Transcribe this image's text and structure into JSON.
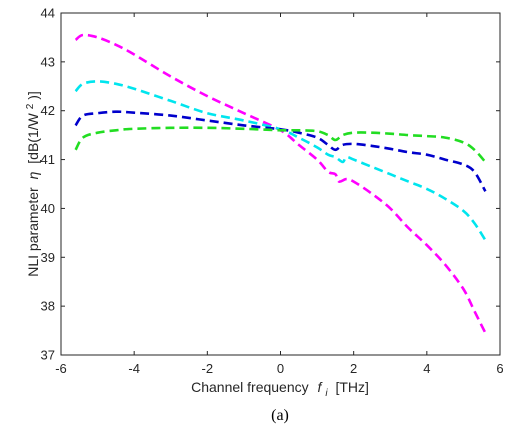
{
  "chart_data": {
    "type": "line",
    "xlabel": "Channel frequency",
    "xlabel_symbol": "f",
    "xlabel_subscript": "i",
    "xlabel_unit": "[THz]",
    "ylabel": "NLI parameter",
    "ylabel_symbol": "η",
    "ylabel_unit_prefix": "[dB(1/W",
    "ylabel_unit_sup": "2",
    "ylabel_unit_suffix": ")]",
    "xlim": [
      -6,
      6
    ],
    "ylim": [
      37,
      44
    ],
    "xticks": [
      -6,
      -4,
      -2,
      0,
      2,
      4,
      6
    ],
    "yticks": [
      37,
      38,
      39,
      40,
      41,
      42,
      43,
      44
    ],
    "grid": false,
    "caption": "(a)",
    "series": [
      {
        "color": "#ff00ff",
        "x": [
          -5.6,
          -5.4,
          -5.0,
          -4.5,
          -4.0,
          -3.0,
          -2.0,
          -1.0,
          0.0,
          0.5,
          1.0,
          1.3,
          1.5,
          1.6,
          1.8,
          2.0,
          2.5,
          3.0,
          3.5,
          4.0,
          4.5,
          5.0,
          5.3,
          5.5,
          5.6
        ],
        "y": [
          43.45,
          43.55,
          43.5,
          43.35,
          43.15,
          42.7,
          42.3,
          41.95,
          41.6,
          41.3,
          41.0,
          40.75,
          40.7,
          40.55,
          40.6,
          40.55,
          40.3,
          40.0,
          39.6,
          39.25,
          38.85,
          38.35,
          37.9,
          37.6,
          37.45
        ]
      },
      {
        "color": "#00e5ee",
        "x": [
          -5.6,
          -5.4,
          -5.0,
          -4.5,
          -4.0,
          -3.0,
          -2.0,
          -1.0,
          0.0,
          0.5,
          1.0,
          1.3,
          1.5,
          1.7,
          1.8,
          2.0,
          2.5,
          3.0,
          3.5,
          4.0,
          4.5,
          5.0,
          5.3,
          5.6
        ],
        "y": [
          42.4,
          42.55,
          42.6,
          42.55,
          42.45,
          42.2,
          41.95,
          41.8,
          41.62,
          41.45,
          41.25,
          41.1,
          41.05,
          40.95,
          41.05,
          41.0,
          40.85,
          40.7,
          40.55,
          40.4,
          40.2,
          39.95,
          39.7,
          39.35
        ]
      },
      {
        "color": "#0000cc",
        "x": [
          -5.6,
          -5.4,
          -5.0,
          -4.5,
          -4.0,
          -3.0,
          -2.0,
          -1.0,
          0.0,
          0.5,
          1.0,
          1.3,
          1.5,
          1.7,
          2.0,
          2.5,
          3.0,
          3.5,
          4.0,
          4.5,
          5.0,
          5.3,
          5.6
        ],
        "y": [
          41.7,
          41.9,
          41.95,
          41.98,
          41.96,
          41.9,
          41.8,
          41.7,
          41.62,
          41.55,
          41.45,
          41.3,
          41.2,
          41.3,
          41.32,
          41.28,
          41.22,
          41.15,
          41.1,
          41.0,
          40.9,
          40.75,
          40.35
        ]
      },
      {
        "color": "#22dd22",
        "x": [
          -5.6,
          -5.4,
          -5.0,
          -4.5,
          -4.0,
          -3.0,
          -2.0,
          -1.0,
          0.0,
          0.5,
          1.0,
          1.3,
          1.5,
          1.7,
          2.0,
          2.5,
          3.0,
          3.5,
          4.0,
          4.5,
          5.0,
          5.3,
          5.6
        ],
        "y": [
          41.2,
          41.45,
          41.55,
          41.6,
          41.63,
          41.65,
          41.65,
          41.63,
          41.6,
          41.6,
          41.58,
          41.5,
          41.4,
          41.5,
          41.55,
          41.55,
          41.53,
          41.5,
          41.48,
          41.45,
          41.35,
          41.2,
          40.95
        ]
      }
    ]
  }
}
